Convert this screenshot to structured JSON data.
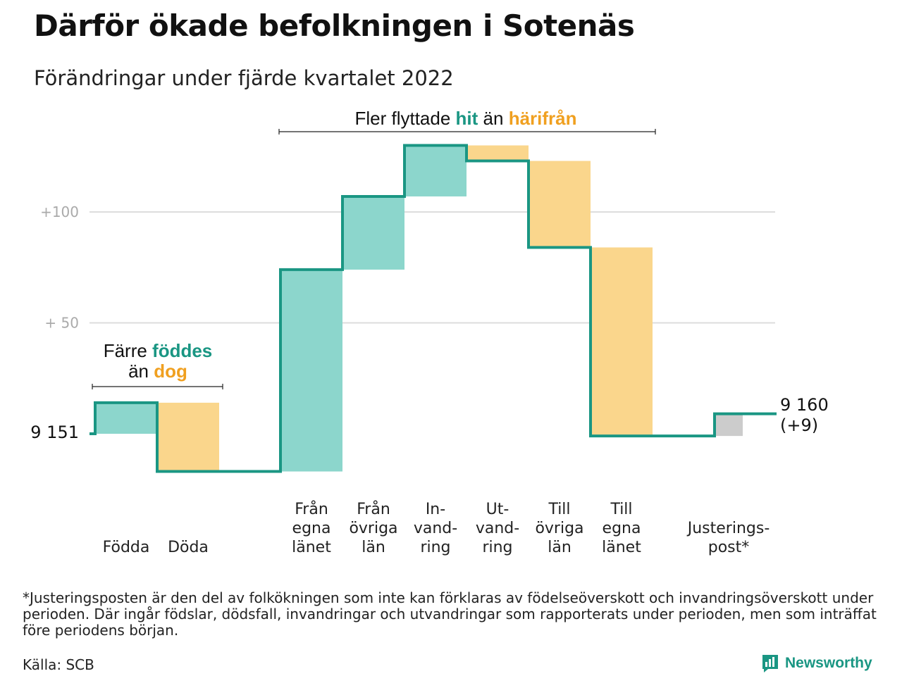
{
  "title": "Därför ökade befolkningen i Sotenäs",
  "subtitle": "Förändringar under fjärde kvartalet 2022",
  "annotations": {
    "births_deaths": {
      "line1_prefix": "Färre ",
      "line1_highlight": "föddes",
      "line2_prefix": "än ",
      "line2_highlight": "dog"
    },
    "migration": {
      "prefix": "Fler flyttade ",
      "highlight1": "hit",
      "middle": " än ",
      "highlight2": "härifrån"
    }
  },
  "colors": {
    "inflow": "#8cd6cc",
    "outflow": "#fad68c",
    "adjustment": "#cccccc",
    "line": "#1a9683",
    "teal_text": "#1a9683",
    "orange_text": "#f0a020",
    "grid": "#dddddd"
  },
  "chart_data": {
    "type": "waterfall",
    "start_value": 9151,
    "start_label": "9 151",
    "end_label": "9 160",
    "end_change_label": "(+9)",
    "yticks": [
      {
        "value": 50,
        "label": "+ 50"
      },
      {
        "value": 100,
        "label": "+100"
      }
    ],
    "steps": [
      {
        "key": "fodda",
        "label_lines": [
          "Födda"
        ],
        "delta": 14,
        "kind": "inflow"
      },
      {
        "key": "doda",
        "label_lines": [
          "Döda"
        ],
        "delta": -31,
        "kind": "outflow"
      },
      {
        "key": "fran_egna",
        "label_lines": [
          "Från",
          "egna",
          "länet"
        ],
        "delta": 91,
        "kind": "inflow"
      },
      {
        "key": "fran_ovriga",
        "label_lines": [
          "Från",
          "övriga",
          "län"
        ],
        "delta": 33,
        "kind": "inflow"
      },
      {
        "key": "invandring",
        "label_lines": [
          "In-",
          "vand-",
          "ring"
        ],
        "delta": 23,
        "kind": "inflow"
      },
      {
        "key": "utvandring",
        "label_lines": [
          "Ut-",
          "vand-",
          "ring"
        ],
        "delta": -7,
        "kind": "outflow"
      },
      {
        "key": "till_ovriga",
        "label_lines": [
          "Till",
          "övriga",
          "län"
        ],
        "delta": -39,
        "kind": "outflow"
      },
      {
        "key": "till_egna",
        "label_lines": [
          "Till",
          "egna",
          "länet"
        ],
        "delta": -85,
        "kind": "outflow"
      },
      {
        "key": "justering",
        "label_lines": [
          "Justerings-",
          "post*"
        ],
        "delta": 10,
        "kind": "adjustment"
      }
    ]
  },
  "footnote": "*Justeringsposten är den del av folkökningen som inte kan förklaras av födelseöverskott och invandringsöverskott under perioden. Där ingår födslar, dödsfall, invandringar och utvandringar som rapporterats under perioden, men som inträffat före periodens början.",
  "source": "Källa: SCB",
  "brand": "Newsworthy"
}
